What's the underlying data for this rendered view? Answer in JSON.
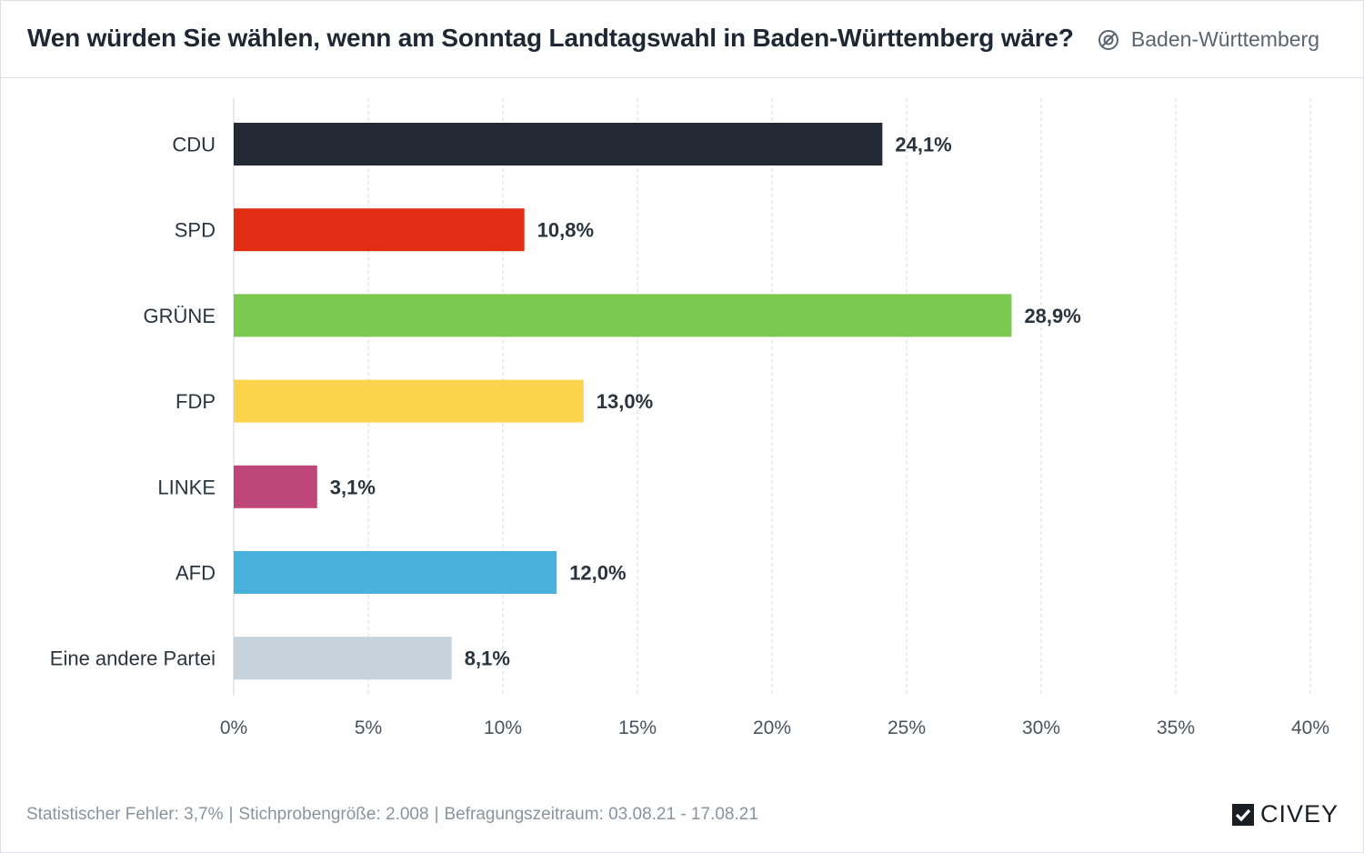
{
  "header": {
    "title": "Wen würden Sie wählen, wenn am Sonntag Landtagswahl in Baden-Württemberg wäre?",
    "region_label": "Baden-Württemberg",
    "region_icon": "region-filter-icon"
  },
  "chart_data": {
    "type": "bar",
    "orientation": "horizontal",
    "title": "Wen würden Sie wählen, wenn am Sonntag Landtagswahl in Baden-Württemberg wäre?",
    "categories": [
      "CDU",
      "SPD",
      "GRÜNE",
      "FDP",
      "LINKE",
      "AFD",
      "Eine andere Partei"
    ],
    "values": [
      24.1,
      10.8,
      28.9,
      13.0,
      3.1,
      12.0,
      8.1
    ],
    "value_labels": [
      "24,1%",
      "10,8%",
      "28,9%",
      "13,0%",
      "3,1%",
      "12,0%",
      "8,1%"
    ],
    "colors": [
      "#232935",
      "#e02d14",
      "#7cc951",
      "#fcd34d",
      "#be4678",
      "#4ab0dc",
      "#c7d3dc"
    ],
    "xlim": [
      0,
      40
    ],
    "xticks": [
      0,
      5,
      10,
      15,
      20,
      25,
      30,
      35,
      40
    ],
    "xtick_labels": [
      "0%",
      "5%",
      "10%",
      "15%",
      "20%",
      "25%",
      "30%",
      "35%",
      "40%"
    ],
    "xlabel": "",
    "ylabel": "",
    "grid": true
  },
  "footer": {
    "error": "Statistischer Fehler: 3,7%",
    "sample": "Stichprobengröße: 2.008",
    "period": "Befragungszeitraum: 03.08.21 - 17.08.21",
    "separator": "|"
  },
  "brand": {
    "name": "CIVEY"
  },
  "colors": {
    "text": "#222a35",
    "muted": "#8a939d",
    "grid": "#d5d9de",
    "border": "#dcdfe3"
  }
}
